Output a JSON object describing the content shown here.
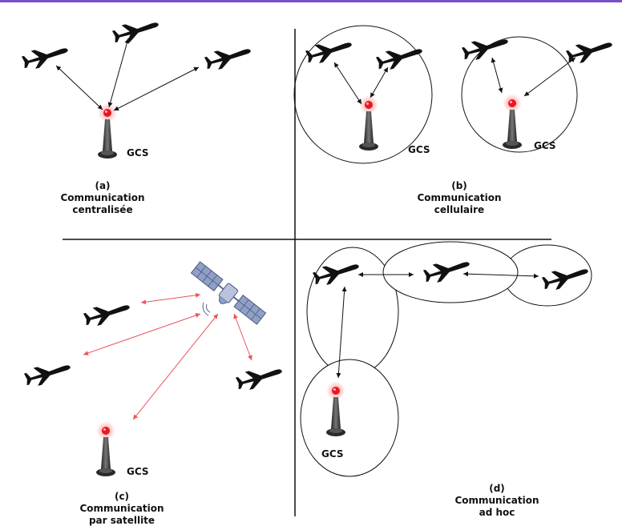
{
  "panels": {
    "a": {
      "letter": "(a)",
      "line1": "Communication",
      "line2": "centralisée"
    },
    "b": {
      "letter": "(b)",
      "line1": "Communication",
      "line2": "cellulaire"
    },
    "c": {
      "letter": "(c)",
      "line1": "Communication",
      "line2": "par satellite"
    },
    "d": {
      "letter": "(d)",
      "line1": "Communication",
      "line2": "ad hoc"
    }
  },
  "gcs_label": "GCS",
  "colors": {
    "accent_bar": "#7b4fc9",
    "link_black": "#111111",
    "link_red": "#e8555a",
    "beacon": "#e8191e",
    "satellite_panel": "#8f9fc6"
  },
  "icons": {
    "aircraft": "aircraft-icon",
    "ground_station": "ground-station-icon",
    "satellite": "satellite-icon"
  }
}
